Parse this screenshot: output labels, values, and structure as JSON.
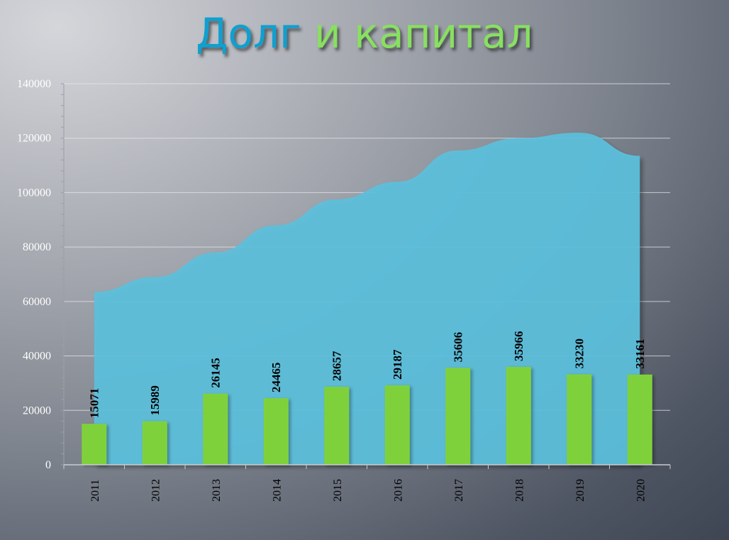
{
  "title": {
    "part1": "Долг",
    "part2": "и капитал"
  },
  "colors": {
    "area": "#5bc0dc",
    "bar": "#7fd13b",
    "title_part1": "#0fa0d0",
    "title_part2": "#88e060"
  },
  "chart_data": {
    "type": "bar",
    "categories": [
      "2011",
      "2012",
      "2013",
      "2014",
      "2015",
      "2016",
      "2017",
      "2018",
      "2019",
      "2020"
    ],
    "series": [
      {
        "type": "bar",
        "values": [
          15071,
          15989,
          26145,
          24465,
          28657,
          29187,
          35606,
          35966,
          33230,
          33161
        ],
        "data_labels": true
      },
      {
        "type": "area",
        "values": [
          63500,
          69000,
          78000,
          88000,
          97500,
          104000,
          115500,
          120000,
          122000,
          113500
        ]
      }
    ],
    "ylim": [
      0,
      140000
    ],
    "yticks": [
      0,
      20000,
      40000,
      60000,
      80000,
      100000,
      120000,
      140000
    ],
    "ytick_labels": [
      "0",
      "20000",
      "40000",
      "60000",
      "80000",
      "100000",
      "120000",
      "140000"
    ],
    "xlabel": "",
    "ylabel": "",
    "grid": true,
    "legend": "none"
  }
}
